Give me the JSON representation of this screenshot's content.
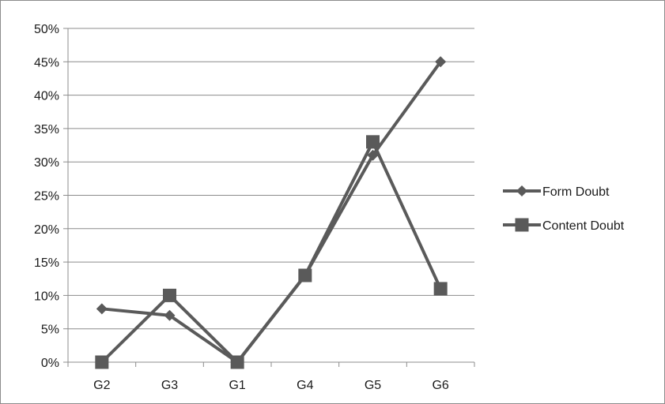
{
  "chart_data": {
    "type": "line",
    "categories": [
      "G2",
      "G3",
      "G1",
      "G4",
      "G5",
      "G6"
    ],
    "series": [
      {
        "name": "Form Doubt",
        "marker": "diamond",
        "values": [
          0.08,
          0.07,
          0.0,
          0.13,
          0.31,
          0.45
        ]
      },
      {
        "name": "Content Doubt",
        "marker": "square",
        "values": [
          0.0,
          0.1,
          0.0,
          0.13,
          0.33,
          0.11
        ]
      }
    ],
    "yticks": [
      "0%",
      "5%",
      "10%",
      "15%",
      "20%",
      "25%",
      "30%",
      "35%",
      "40%",
      "45%",
      "50%"
    ],
    "ylim": [
      0,
      0.5
    ],
    "grid": true,
    "legend": "right",
    "colors": {
      "series": "#5a5a5a",
      "grid": "#8c8c8c",
      "axis": "#8c8c8c"
    }
  }
}
